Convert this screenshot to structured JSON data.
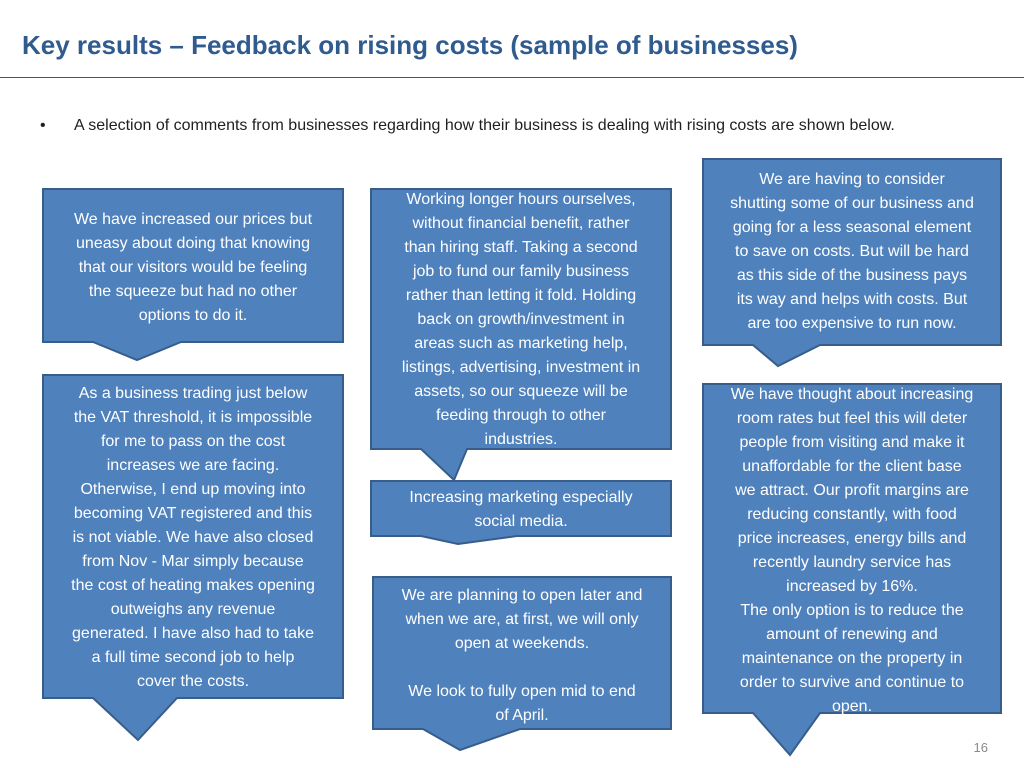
{
  "slide": {
    "title": "Key results – Feedback on rising costs (sample of businesses)",
    "bullet_marker": "•",
    "intro": "A selection of comments from businesses regarding how their business is dealing with rising costs are shown below.",
    "page_number": "16"
  },
  "comments": [
    {
      "text": "We have increased our prices but\nuneasy about doing that knowing\nthat our visitors would be feeling\nthe squeeze but had no other\noptions to do it."
    },
    {
      "text": "Working longer hours ourselves,\nwithout financial benefit, rather\nthan hiring staff.  Taking a second\njob to fund our family business\nrather than letting it fold. Holding\nback on growth/investment in\nareas such as marketing help,\nlistings, advertising, investment in\nassets, so our squeeze will be\nfeeding through to other\nindustries."
    },
    {
      "text": "We are having to consider\nshutting some of our business and\ngoing for a less seasonal element\nto save on costs. But will be hard\nas this side of the business pays\nits way and helps with costs. But\nare too expensive to run now."
    },
    {
      "text": "As a business trading just below\nthe VAT threshold, it is impossible\nfor me to pass on the cost\nincreases we are facing.\nOtherwise, I end up moving into\nbecoming VAT registered and this\nis not viable. We have also closed\nfrom Nov - Mar simply because\nthe cost of heating makes opening\noutweighs any revenue\ngenerated. I have also had to take\na full time second job to help\ncover the costs."
    },
    {
      "text": "Increasing marketing especially\nsocial media."
    },
    {
      "text": "We are planning to open later and\nwhen we are, at first, we will only\nopen at weekends.\n\nWe look to fully open mid to end\nof April."
    },
    {
      "text": "We have thought about increasing\nroom rates but feel this will deter\npeople from visiting and make it\nunaffordable for the client base\nwe attract.  Our profit margins are\nreducing constantly, with food\nprice increases, energy bills and\nrecently laundry service has\nincreased by 16%.\nThe only option is to reduce the\namount of renewing and\nmaintenance on the property in\norder to survive and continue to\nopen."
    }
  ]
}
